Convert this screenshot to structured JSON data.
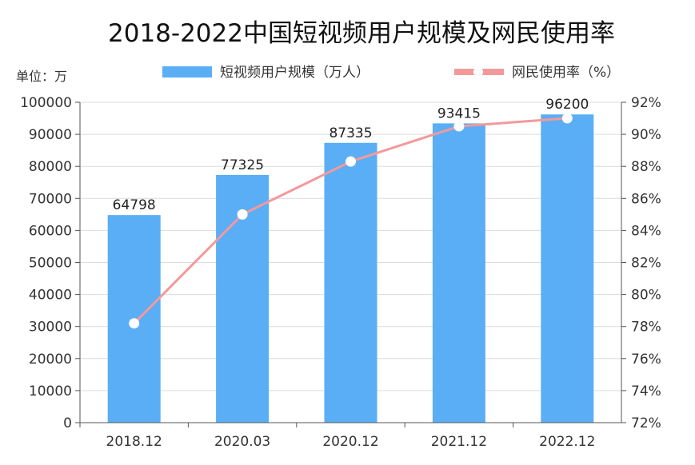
{
  "chart_data": {
    "type": "bar+line",
    "title": "2018-2022中国短视频用户规模及网民使用率",
    "unit_label": "单位：万",
    "categories": [
      "2018.12",
      "2020.03",
      "2020.12",
      "2021.12",
      "2022.12"
    ],
    "series": [
      {
        "name": "短视频用户规模（万人）",
        "type": "bar",
        "axis": "left",
        "color": "#5aaef5",
        "values": [
          64798,
          77325,
          87335,
          93415,
          96200
        ]
      },
      {
        "name": "网民使用率（%）",
        "type": "line",
        "axis": "right",
        "color": "#f4999b",
        "values": [
          78.2,
          85.0,
          88.3,
          90.5,
          91.0
        ]
      }
    ],
    "y_left": {
      "min": 0,
      "max": 100000,
      "ticks": [
        "0",
        "10000",
        "20000",
        "30000",
        "40000",
        "50000",
        "60000",
        "70000",
        "80000",
        "90000",
        "100000"
      ]
    },
    "y_right": {
      "min": 72,
      "max": 92,
      "ticks": [
        "72%",
        "74%",
        "76%",
        "78%",
        "80%",
        "82%",
        "84%",
        "86%",
        "88%",
        "90%",
        "92%"
      ]
    },
    "grid": true,
    "legend": "top"
  }
}
